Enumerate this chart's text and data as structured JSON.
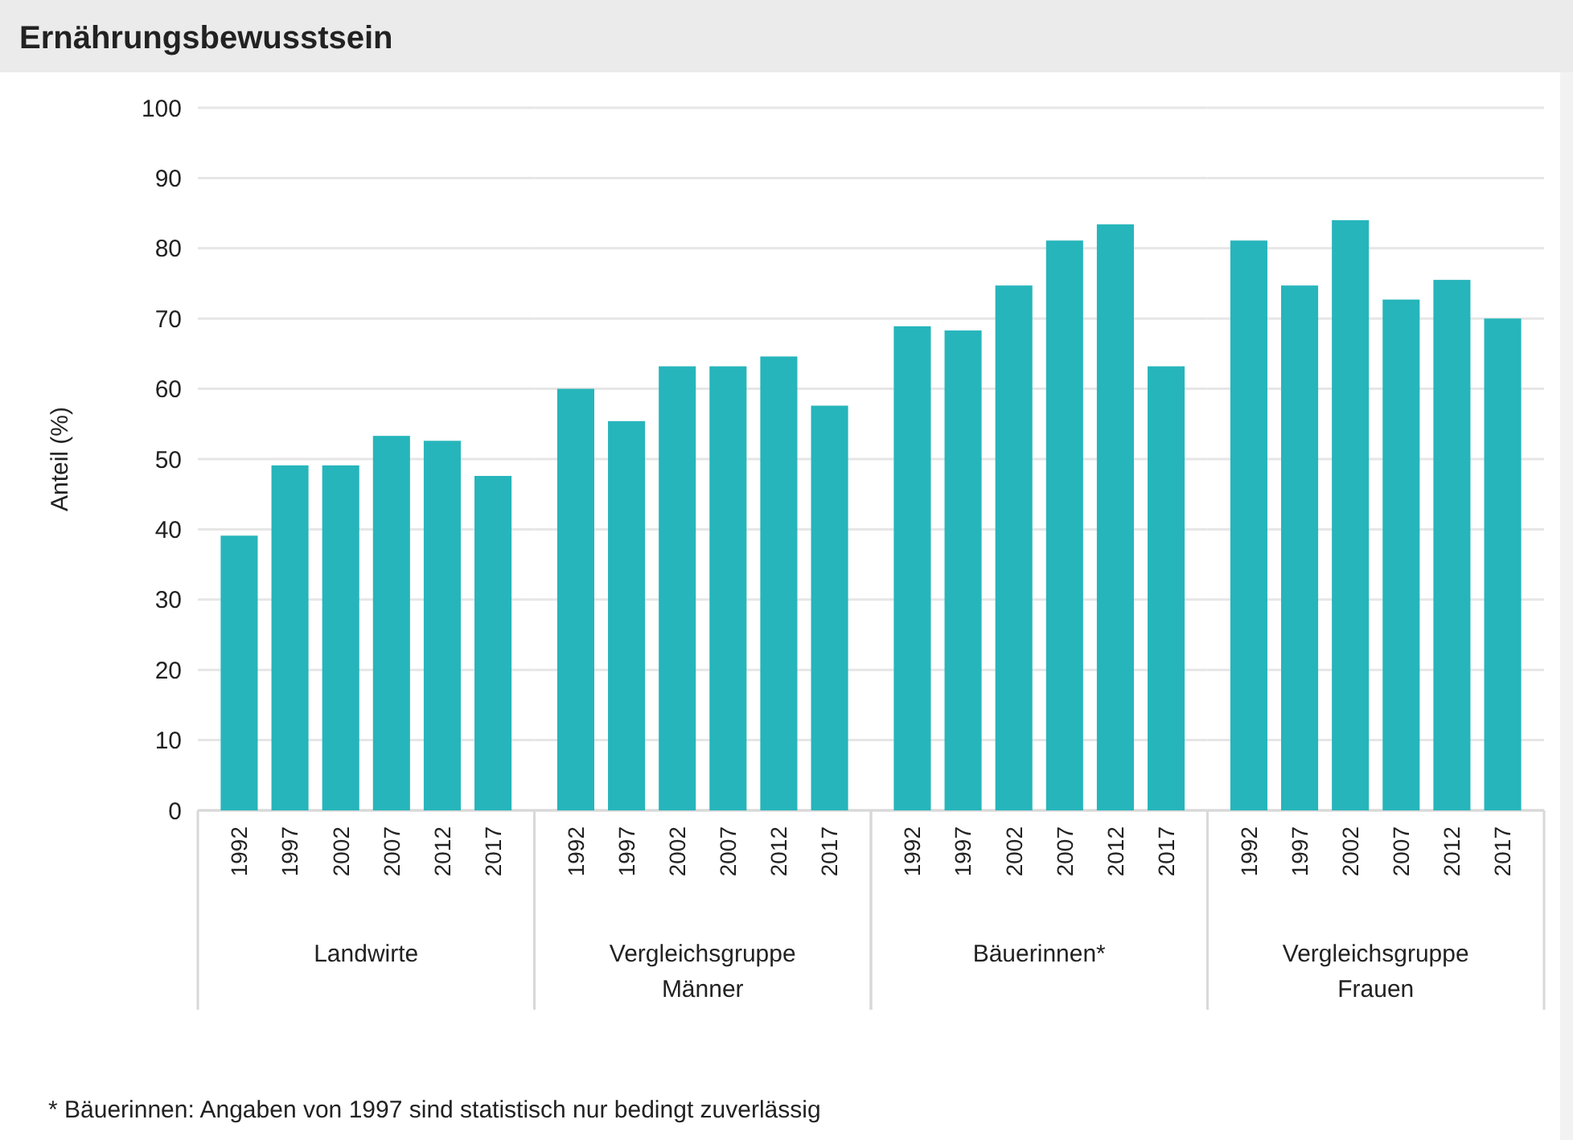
{
  "chart_data": [
    {
      "type": "bar",
      "title": "Ernährungsbewusstsein",
      "ylabel": "Anteil (%)",
      "xlabel": "Landwirte",
      "categories": [
        "1992",
        "1997",
        "2002",
        "2007",
        "2012",
        "2017"
      ],
      "values": [
        39.1,
        49.1,
        49.1,
        53.3,
        52.6,
        47.6
      ],
      "color": "#26b5bb",
      "ylim": [
        0,
        100
      ],
      "yticks": [
        0,
        10,
        20,
        30,
        40,
        50,
        60,
        70,
        80,
        90,
        100
      ],
      "grid": "y",
      "annotations": [
        "* Bäuerinnen: Angaben von 1997 sind statistisch nur bedingt zuverlässig"
      ]
    },
    {
      "type": "bar",
      "xlabel": "Vergleichsgruppe Männer",
      "categories": [
        "1992",
        "1997",
        "2002",
        "2007",
        "2012",
        "2017"
      ],
      "values": [
        60,
        55.4,
        63.2,
        63.2,
        64.6,
        57.6
      ],
      "color": "#26b5bb",
      "ylim": [
        0,
        100
      ],
      "yticks": [
        0,
        10,
        20,
        30,
        40,
        50,
        60,
        70,
        80,
        90,
        100
      ],
      "grid": "y",
      "tick_labels": "x"
    },
    {
      "type": "bar",
      "xlabel": "Bäuerinnen*",
      "categories": [
        "1992",
        "1997",
        "2002",
        "2007",
        "2012",
        "2017"
      ],
      "values": [
        68.9,
        68.3,
        74.7,
        81.1,
        83.4,
        63.2
      ],
      "color": "#26b5bb",
      "ylim": [
        0,
        100
      ],
      "yticks": [
        0,
        10,
        20,
        30,
        40,
        50,
        60,
        70,
        80,
        90,
        100
      ],
      "grid": "y",
      "tick_labels": "x"
    },
    {
      "type": "bar",
      "xlabel": "Vergleichsgruppe Frauen",
      "categories": [
        "1992",
        "1997",
        "2002",
        "2007",
        "2012",
        "2017"
      ],
      "values": [
        81.1,
        74.7,
        84,
        72.7,
        75.5,
        70
      ],
      "color": "#26b5bb",
      "ylim": [
        0,
        100
      ],
      "yticks": [
        0,
        10,
        20,
        30,
        40,
        50,
        60,
        70,
        80,
        90,
        100
      ],
      "grid": "y",
      "tick_labels": "x"
    }
  ]
}
